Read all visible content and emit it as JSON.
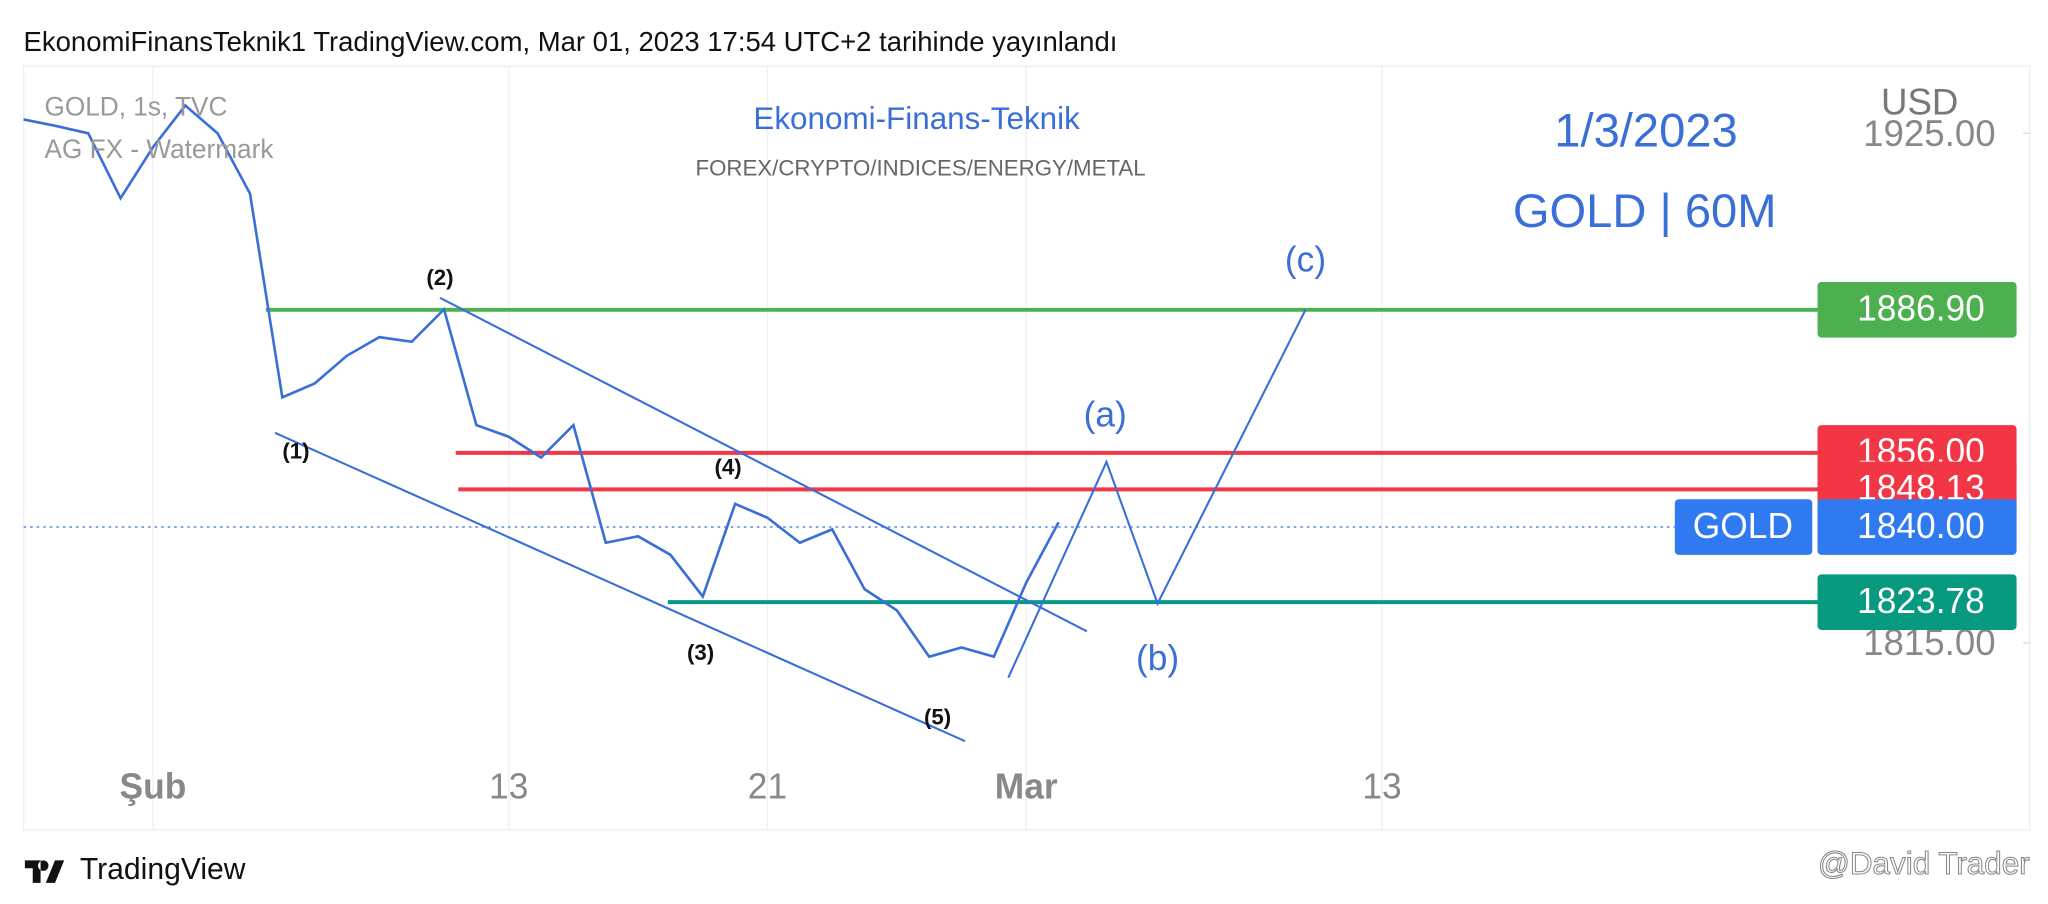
{
  "header": {
    "title": "EkonomiFinansTeknik1 TradingView.com, Mar 01, 2023 17:54 UTC+2 tarihinde yayınlandı"
  },
  "chart_data": {
    "type": "line",
    "symbol": "GOLD, 1s, TVC",
    "watermark": "AG FX - Watermark",
    "brand": "Ekonomi-Finans-Teknik",
    "subtitle": "FOREX/CRYPTO/INDICES/ENERGY/METAL",
    "date_label": "1/3/2023",
    "instrument_label": "GOLD | 60M",
    "currency": "USD",
    "categories": [
      null,
      null,
      null,
      null,
      "Şub",
      null,
      null,
      null,
      null,
      null,
      null,
      null,
      null,
      null,
      null,
      "13",
      null,
      null,
      null,
      null,
      null,
      null,
      null,
      "21",
      null,
      null,
      null,
      null,
      null,
      null,
      null,
      "Mar",
      null,
      null,
      null,
      null,
      null,
      null,
      null,
      null,
      null,
      null,
      "13",
      null,
      null,
      null,
      null,
      null,
      null,
      null,
      null,
      null,
      null,
      null,
      null,
      null,
      null,
      null,
      null,
      null,
      null,
      null,
      null
    ],
    "series": [
      {
        "name": "GOLD",
        "color": "#3a6fd8",
        "values": [
          1928,
          1926.6,
          1925,
          1911,
          1922,
          1931,
          1925,
          1912,
          1868,
          1871,
          1877,
          1881,
          1880,
          1887,
          1862,
          1859.5,
          1855,
          1862,
          1836.6,
          1838,
          1834,
          1825,
          1845,
          1842,
          1836.6,
          1839.5,
          1826.6,
          1822,
          1812,
          1814,
          1812,
          1828,
          1841,
          null,
          null,
          null,
          null,
          null,
          null,
          null,
          null,
          null,
          null,
          null,
          null,
          null,
          null,
          null,
          null,
          null,
          null,
          null,
          null,
          null,
          null,
          null,
          null,
          null,
          null,
          null,
          null,
          null,
          null
        ]
      }
    ],
    "current_price": {
      "value": 1840,
      "label": "1840.00"
    },
    "levels": [
      {
        "value": 1886.9,
        "label": "1886.90",
        "color": "#4caf50"
      },
      {
        "value": 1856,
        "label": "1856.00",
        "color": "#f23645"
      },
      {
        "value": 1848.13,
        "label": "1848.13",
        "color": "#f23645"
      },
      {
        "value": 1823.78,
        "label": "1823.78",
        "color": "#089981"
      }
    ],
    "wave_labels": [
      "(1)",
      "(2)",
      "(3)",
      "(4)",
      "(5)",
      "(a)",
      "(b)",
      "(c)"
    ],
    "ylim": [
      1790.9,
      1939.5
    ],
    "yticks": [
      {
        "value": 1925,
        "label": "1925.00"
      },
      {
        "value": 1815,
        "label": "1815.00"
      }
    ],
    "grid": true
  },
  "footer": {
    "brand": "TradingView",
    "watermark": "@David Trader"
  }
}
